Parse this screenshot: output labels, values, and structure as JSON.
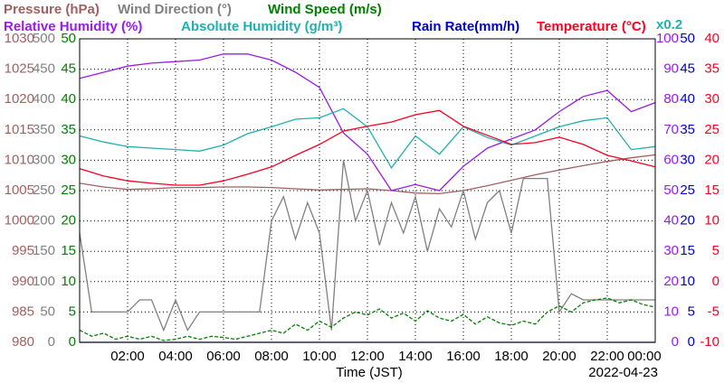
{
  "chart_data": {
    "type": "line",
    "x_label": "Time (JST)",
    "date": "2022-04-23",
    "grid": true,
    "xlim": [
      0,
      24
    ],
    "xticks": [
      {
        "value": 2,
        "label": "02:00"
      },
      {
        "value": 4,
        "label": "04:00"
      },
      {
        "value": 6,
        "label": "06:00"
      },
      {
        "value": 8,
        "label": "08:00"
      },
      {
        "value": 10,
        "label": "10:00"
      },
      {
        "value": 12,
        "label": "12:00"
      },
      {
        "value": 14,
        "label": "14:00"
      },
      {
        "value": 16,
        "label": "16:00"
      },
      {
        "value": 18,
        "label": "18:00"
      },
      {
        "value": 20,
        "label": "20:00"
      },
      {
        "value": 22,
        "label": "22:00"
      },
      {
        "value": 24,
        "label": "00:00"
      }
    ],
    "axes": [
      {
        "side": "left",
        "color": "#a06060",
        "lim": [
          980,
          1030
        ],
        "ticks": [
          980,
          985,
          990,
          995,
          1000,
          1005,
          1010,
          1015,
          1020,
          1025,
          1030
        ]
      },
      {
        "side": "left",
        "color": "#808080",
        "lim": [
          0,
          500
        ],
        "ticks": [
          0,
          50,
          100,
          150,
          200,
          250,
          300,
          350,
          400,
          450,
          500
        ]
      },
      {
        "side": "left",
        "color": "#008000",
        "lim": [
          0,
          50
        ],
        "ticks": [
          0,
          5,
          10,
          15,
          20,
          25,
          30,
          35,
          40,
          45,
          50
        ]
      },
      {
        "side": "right",
        "color": "#9a1be8",
        "lim": [
          0,
          100
        ],
        "ticks": [
          0,
          10,
          20,
          30,
          40,
          50,
          60,
          70,
          80,
          90,
          100
        ]
      },
      {
        "side": "right",
        "color": "#0000cc",
        "lim": [
          0,
          50
        ],
        "ticks": [
          0,
          5,
          10,
          15,
          20,
          25,
          30,
          35,
          40,
          45,
          50
        ]
      },
      {
        "side": "right",
        "color": "#ff0022",
        "lim": [
          -10,
          40
        ],
        "ticks": [
          -10,
          -5,
          0,
          5,
          10,
          15,
          20,
          25,
          30,
          35,
          40
        ]
      },
      {
        "side": "none",
        "color": "#20b0b0",
        "lim": [
          0,
          20
        ],
        "label": "x0.2"
      }
    ],
    "series": [
      {
        "name": "Pressure (hPa)",
        "color": "#a06060",
        "axis": 0,
        "x": [
          0,
          1,
          2,
          3,
          4,
          5,
          6,
          7,
          8,
          9,
          10,
          11,
          12,
          13,
          14,
          15,
          16,
          17,
          18,
          19,
          20,
          21,
          22,
          23,
          24
        ],
        "values": [
          1006.2,
          1005.6,
          1005.2,
          1005.3,
          1005.5,
          1005.5,
          1005.6,
          1005.6,
          1005.5,
          1005.3,
          1005.1,
          1005.2,
          1005.3,
          1005.0,
          1004.6,
          1004.5,
          1005.0,
          1005.8,
          1006.7,
          1007.6,
          1008.4,
          1009.1,
          1009.8,
          1010.4,
          1010.9
        ]
      },
      {
        "name": "Wind Direction (°)",
        "color": "#808080",
        "axis": 1,
        "x": [
          0,
          0.5,
          1,
          1.5,
          2,
          2.5,
          3,
          3.5,
          4,
          4.5,
          5,
          5.5,
          6,
          6.5,
          7,
          7.5,
          8,
          8.5,
          9,
          9.5,
          10,
          10.5,
          11,
          11.5,
          12,
          12.5,
          13,
          13.5,
          14,
          14.5,
          15,
          15.5,
          16,
          16.5,
          17,
          17.5,
          18,
          18.5,
          19,
          19.5,
          20,
          20.5,
          21,
          21.5,
          22,
          22.5,
          23,
          23.5,
          24
        ],
        "values": [
          180,
          50,
          50,
          50,
          50,
          70,
          70,
          20,
          70,
          20,
          50,
          50,
          50,
          50,
          50,
          50,
          200,
          240,
          170,
          230,
          180,
          20,
          300,
          200,
          250,
          160,
          230,
          180,
          240,
          150,
          220,
          190,
          250,
          170,
          230,
          250,
          180,
          270,
          270,
          270,
          50,
          80,
          70,
          70,
          70,
          70,
          70,
          70,
          70
        ]
      },
      {
        "name": "Wind Speed (m/s)",
        "color": "#008000",
        "axis": 2,
        "dash": true,
        "x": [
          0,
          0.5,
          1,
          1.5,
          2,
          2.5,
          3,
          3.5,
          4,
          4.5,
          5,
          5.5,
          6,
          6.5,
          7,
          7.5,
          8,
          8.5,
          9,
          9.5,
          10,
          10.5,
          11,
          11.5,
          12,
          12.5,
          13,
          13.5,
          14,
          14.5,
          15,
          15.5,
          16,
          16.5,
          17,
          17.5,
          18,
          18.5,
          19,
          19.5,
          20,
          20.5,
          21,
          21.5,
          22,
          22.5,
          23,
          23.5,
          24
        ],
        "values": [
          2,
          1,
          1.5,
          0.5,
          1,
          0.5,
          1,
          0.3,
          0.5,
          1,
          0.5,
          1,
          0.8,
          0.5,
          1,
          1.5,
          2,
          1.5,
          3,
          2,
          3.5,
          2.5,
          4,
          5,
          4.5,
          5.5,
          4,
          4.8,
          3.5,
          5.2,
          4,
          3.5,
          4.6,
          3,
          4.2,
          3.2,
          2.8,
          3.5,
          3,
          5,
          6,
          5,
          6.5,
          7,
          7.3,
          6.5,
          7,
          6.2,
          5.8
        ]
      },
      {
        "name": "Relative Humidity (%)",
        "color": "#9a1be8",
        "axis": 3,
        "x": [
          0,
          1,
          2,
          3,
          4,
          5,
          6,
          7,
          8,
          9,
          10,
          11,
          12,
          13,
          14,
          15,
          16,
          17,
          18,
          19,
          20,
          21,
          22,
          23,
          24
        ],
        "values": [
          87,
          89,
          91,
          92,
          92.5,
          93,
          95,
          95,
          93,
          89,
          84,
          69,
          62,
          50,
          52,
          50,
          58,
          64,
          67,
          70,
          76,
          81,
          83,
          76,
          79
        ]
      },
      {
        "name": "Absolute Humidity (g/m³)",
        "color": "#20b0b0",
        "axis": 6,
        "x": [
          0,
          1,
          2,
          3,
          4,
          5,
          6,
          7,
          8,
          9,
          10,
          11,
          12,
          13,
          14,
          15,
          16,
          17,
          18,
          19,
          20,
          21,
          22,
          23,
          24
        ],
        "values": [
          13.6,
          13.2,
          12.9,
          12.8,
          12.7,
          12.6,
          13.0,
          13.75,
          14.2,
          14.7,
          14.8,
          15.4,
          14.2,
          11.5,
          13.6,
          12.4,
          14.2,
          13.5,
          13.0,
          13.6,
          14.2,
          14.6,
          14.8,
          12.7,
          12.9
        ]
      },
      {
        "name": "Rain Rate(mm/h)",
        "color": "#0000cc",
        "axis": 4,
        "x": [
          0,
          24
        ],
        "values": [
          0,
          0
        ]
      },
      {
        "name": "Temperature (°C)",
        "color": "#ff0022",
        "axis": 5,
        "x": [
          0,
          1,
          2,
          3,
          4,
          5,
          6,
          7,
          8,
          9,
          10,
          11,
          12,
          13,
          14,
          15,
          16,
          17,
          18,
          19,
          20,
          21,
          22,
          23,
          24
        ],
        "values": [
          18.6,
          17.4,
          16.6,
          16.2,
          15.9,
          15.9,
          16.6,
          17.7,
          18.9,
          20.8,
          22.6,
          24.8,
          25.6,
          26.3,
          27.5,
          28.2,
          25.6,
          24.1,
          22.6,
          22.9,
          23.8,
          22.6,
          20.8,
          19.9,
          18.9
        ]
      }
    ]
  }
}
